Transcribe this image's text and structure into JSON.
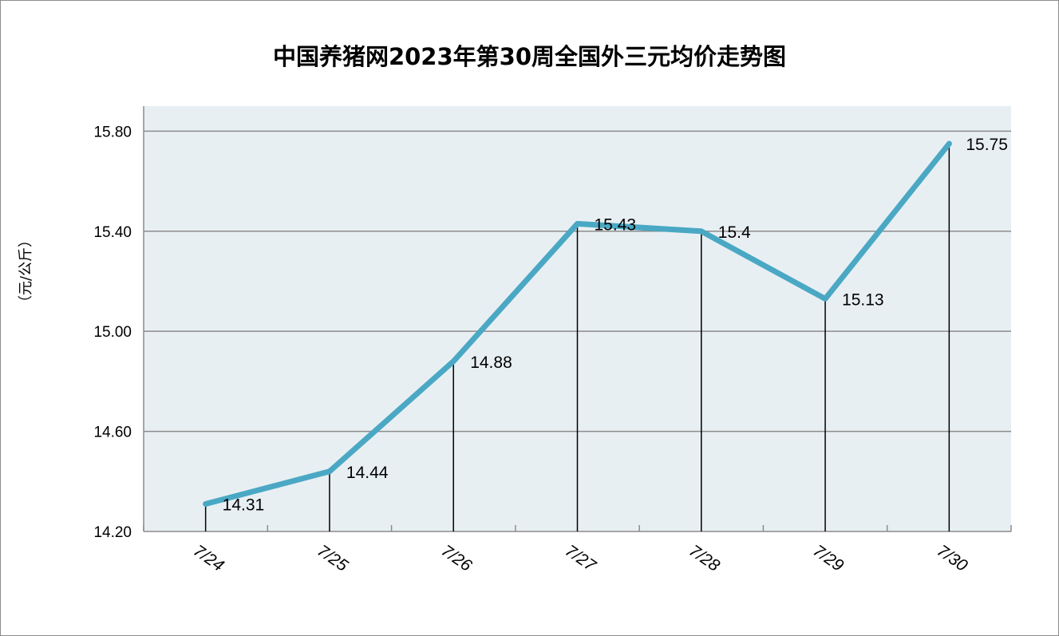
{
  "chart_data": {
    "type": "line",
    "title": "中国养猪网2023年第30周全国外三元均价走势图",
    "ylabel": "（元/公斤）",
    "xlabel": "",
    "categories": [
      "7/24",
      "7/25",
      "7/26",
      "7/27",
      "7/28",
      "7/29",
      "7/30"
    ],
    "values": [
      14.31,
      14.44,
      14.88,
      15.43,
      15.4,
      15.13,
      15.75
    ],
    "data_labels": [
      "14.31",
      "14.44",
      "14.88",
      "15.43",
      "15.4",
      "15.13",
      "15.75"
    ],
    "ylim": [
      14.2,
      15.9
    ],
    "yticks": [
      14.2,
      14.6,
      15.0,
      15.4,
      15.8
    ],
    "ytick_labels": [
      "14.20",
      "14.60",
      "15.00",
      "15.40",
      "15.80"
    ],
    "grid": true,
    "drop_lines": true,
    "colors": {
      "line": "#4aa8c4",
      "plot_bg": "#e8eff3",
      "grid": "#8c8c8c",
      "drop_line": "#000000"
    }
  }
}
